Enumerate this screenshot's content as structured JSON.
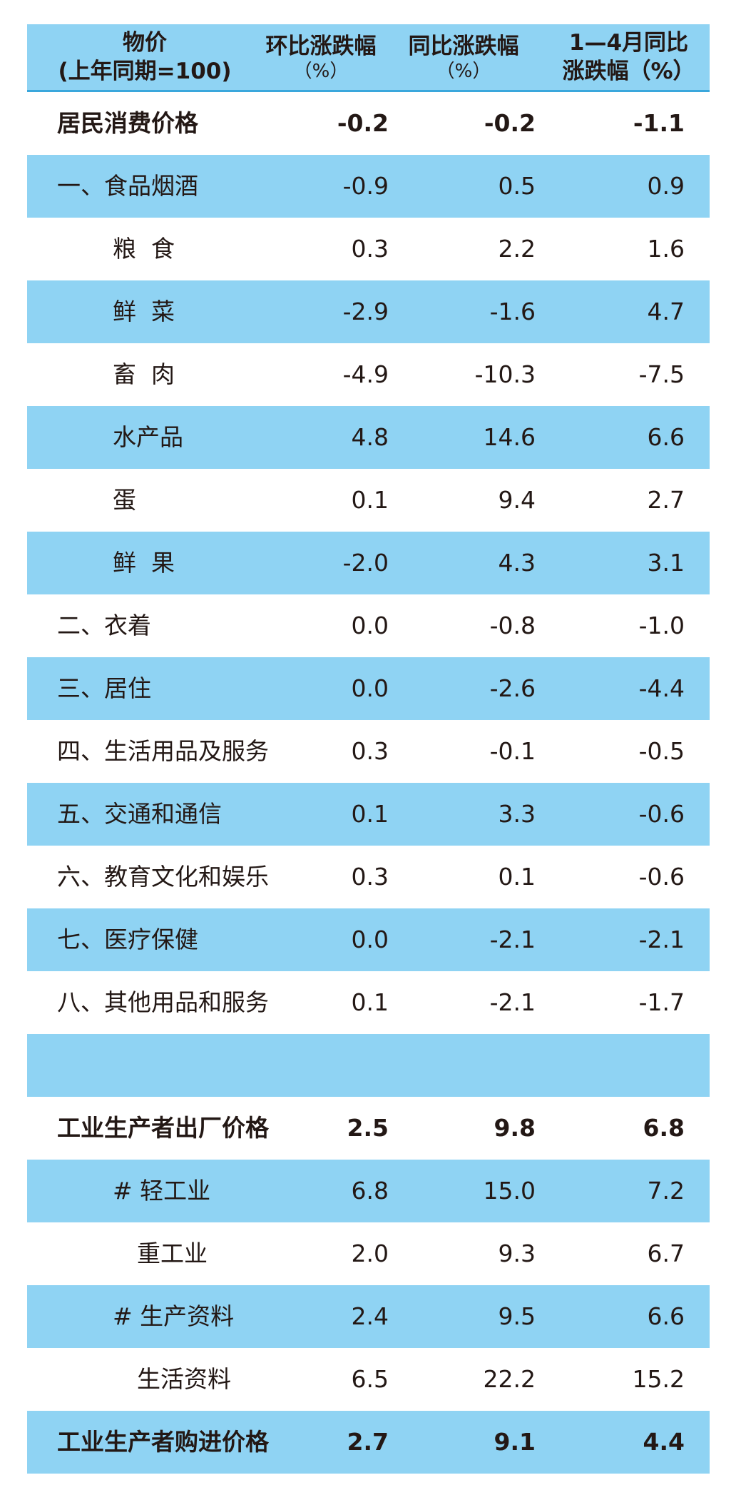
{
  "header": {
    "col0_line1": "物价",
    "col0_line2": "(上年同期=100)",
    "col1_line1": "环比涨跌幅",
    "col1_line2": "（%）",
    "col2_line1": "同比涨跌幅",
    "col2_line2": "（%）",
    "col3_line1": "1—4月同比",
    "col3_line2": "涨跌幅（%）"
  },
  "rows": [
    {
      "name": "居民消费价格",
      "m": "-0.2",
      "y": "-0.2",
      "ytd": "-1.1"
    },
    {
      "name": "一、食品烟酒",
      "m": "-0.9",
      "y": "0.5",
      "ytd": "0.9"
    },
    {
      "name": "粮  食",
      "m": "0.3",
      "y": "2.2",
      "ytd": "1.6"
    },
    {
      "name": "鲜  菜",
      "m": "-2.9",
      "y": "-1.6",
      "ytd": "4.7"
    },
    {
      "name": "畜  肉",
      "m": "-4.9",
      "y": "-10.3",
      "ytd": "-7.5"
    },
    {
      "name": "水产品",
      "m": "4.8",
      "y": "14.6",
      "ytd": "6.6"
    },
    {
      "name": "蛋",
      "m": "0.1",
      "y": "9.4",
      "ytd": "2.7"
    },
    {
      "name": "鲜  果",
      "m": "-2.0",
      "y": "4.3",
      "ytd": "3.1"
    },
    {
      "name": "二、衣着",
      "m": "0.0",
      "y": "-0.8",
      "ytd": "-1.0"
    },
    {
      "name": "三、居住",
      "m": "0.0",
      "y": "-2.6",
      "ytd": "-4.4"
    },
    {
      "name": "四、生活用品及服务",
      "m": "0.3",
      "y": "-0.1",
      "ytd": "-0.5"
    },
    {
      "name": "五、交通和通信",
      "m": "0.1",
      "y": "3.3",
      "ytd": "-0.6"
    },
    {
      "name": "六、教育文化和娱乐",
      "m": "0.3",
      "y": "0.1",
      "ytd": "-0.6"
    },
    {
      "name": "七、医疗保健",
      "m": "0.0",
      "y": "-2.1",
      "ytd": "-2.1"
    },
    {
      "name": "八、其他用品和服务",
      "m": "0.1",
      "y": "-2.1",
      "ytd": "-1.7"
    },
    {
      "name": "",
      "m": "",
      "y": "",
      "ytd": ""
    },
    {
      "name": "工业生产者出厂价格",
      "m": "2.5",
      "y": "9.8",
      "ytd": "6.8"
    },
    {
      "name": "# 轻工业",
      "m": "6.8",
      "y": "15.0",
      "ytd": "7.2"
    },
    {
      "name": "重工业",
      "m": "2.0",
      "y": "9.3",
      "ytd": "6.7"
    },
    {
      "name": "# 生产资料",
      "m": "2.4",
      "y": "9.5",
      "ytd": "6.6"
    },
    {
      "name": "生活资料",
      "m": "6.5",
      "y": "22.2",
      "ytd": "15.2"
    },
    {
      "name": "工业生产者购进价格",
      "m": "2.7",
      "y": "9.1",
      "ytd": "4.4"
    }
  ]
}
